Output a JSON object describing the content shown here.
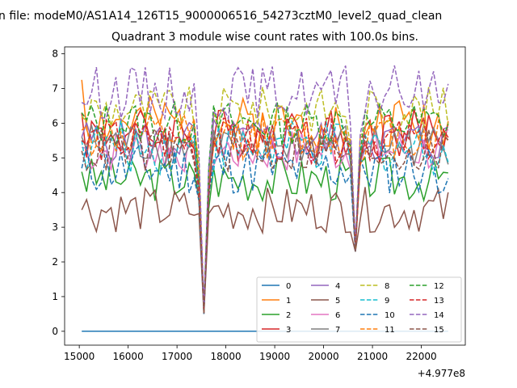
{
  "chart_data": {
    "type": "line",
    "suptitle": "n file: modeM0/AS1A14_126T15_9000006516_54273cztM0_level2_quad_clean",
    "title": "Quadrant 3 module wise count rates with 100.0s bins.",
    "xlabel": "",
    "ylabel": "",
    "x_offset_label": "+4.977e8",
    "xlim": [
      14700,
      22900
    ],
    "ylim": [
      -0.4,
      8.2
    ],
    "xticks": [
      15000,
      16000,
      17000,
      18000,
      19000,
      20000,
      21000,
      22000
    ],
    "xtick_labels": [
      "15000",
      "16000",
      "17000",
      "18000",
      "19000",
      "20000",
      "21000",
      "22000"
    ],
    "yticks": [
      0,
      1,
      2,
      3,
      4,
      5,
      6,
      7,
      8
    ],
    "ytick_labels": [
      "0",
      "1",
      "2",
      "3",
      "4",
      "5",
      "6",
      "7",
      "8"
    ],
    "x_start": 15050,
    "x_step": 100,
    "gaps": [
      [
        17550,
        0.5
      ],
      [
        20650,
        2.3
      ]
    ],
    "legend_position": "lower right",
    "legend_columns": 4,
    "series": [
      {
        "name": "0",
        "color": "#1f77b4",
        "dash": "solid",
        "base": 0.0,
        "amp": 0.0,
        "seed": 1,
        "start": 0.0
      },
      {
        "name": "1",
        "color": "#ff7f0e",
        "dash": "solid",
        "base": 6.0,
        "amp": 0.35,
        "seed": 2,
        "start": 7.25
      },
      {
        "name": "2",
        "color": "#2ca02c",
        "dash": "solid",
        "base": 4.4,
        "amp": 0.3,
        "seed": 3,
        "start": 4.6
      },
      {
        "name": "3",
        "color": "#d62728",
        "dash": "solid",
        "base": 5.7,
        "amp": 0.35,
        "seed": 4,
        "start": 6.3
      },
      {
        "name": "4",
        "color": "#9467bd",
        "dash": "solid",
        "base": 5.5,
        "amp": 0.3,
        "seed": 5,
        "start": 5.6
      },
      {
        "name": "5",
        "color": "#8c564b",
        "dash": "solid",
        "base": 3.5,
        "amp": 0.3,
        "seed": 6,
        "start": 3.5
      },
      {
        "name": "6",
        "color": "#e377c2",
        "dash": "solid",
        "base": 5.2,
        "amp": 0.3,
        "seed": 7,
        "start": 5.3
      },
      {
        "name": "7",
        "color": "#7f7f7f",
        "dash": "solid",
        "base": 5.4,
        "amp": 0.3,
        "seed": 8,
        "start": 5.6
      },
      {
        "name": "8",
        "color": "#bcbd22",
        "dash": "dashed",
        "base": 6.4,
        "amp": 0.3,
        "seed": 9,
        "start": 6.2
      },
      {
        "name": "9",
        "color": "#17becf",
        "dash": "dashed",
        "base": 5.3,
        "amp": 0.35,
        "seed": 10,
        "start": 5.5
      },
      {
        "name": "10",
        "color": "#1f77b4",
        "dash": "dashed",
        "base": 4.7,
        "amp": 0.35,
        "seed": 11,
        "start": 4.7
      },
      {
        "name": "11",
        "color": "#ff7f0e",
        "dash": "dashed",
        "base": 5.6,
        "amp": 0.3,
        "seed": 12,
        "start": 5.8
      },
      {
        "name": "12",
        "color": "#2ca02c",
        "dash": "dashed",
        "base": 6.0,
        "amp": 0.3,
        "seed": 13,
        "start": 6.3
      },
      {
        "name": "13",
        "color": "#d62728",
        "dash": "dashed",
        "base": 5.5,
        "amp": 0.3,
        "seed": 14,
        "start": 5.5
      },
      {
        "name": "14",
        "color": "#9467bd",
        "dash": "dashed",
        "base": 6.9,
        "amp": 0.35,
        "seed": 15,
        "start": 6.6
      },
      {
        "name": "15",
        "color": "#8c564b",
        "dash": "dashed",
        "base": 5.2,
        "amp": 0.3,
        "seed": 16,
        "start": 5.2
      }
    ]
  }
}
